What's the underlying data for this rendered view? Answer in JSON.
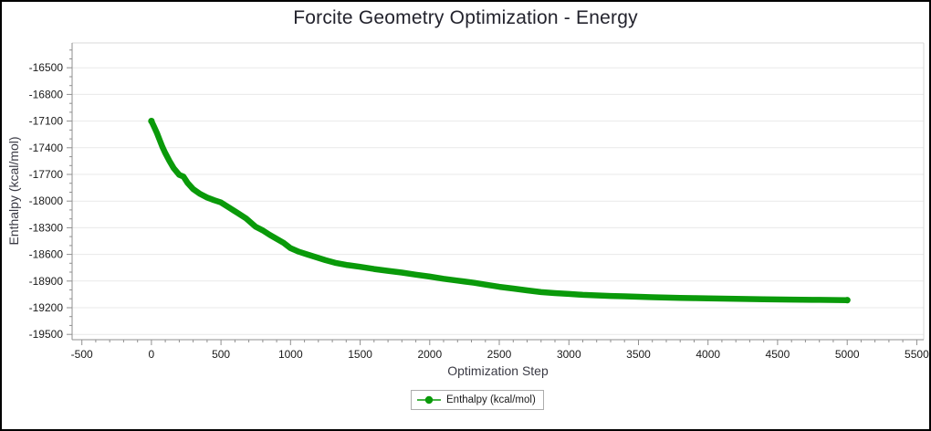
{
  "window": {
    "title": "Forcite Geometry Optimization - Energy"
  },
  "chart_data": {
    "type": "line",
    "title": "Forcite Geometry Optimization - Energy",
    "xlabel": "Optimization Step",
    "ylabel": "Enthalpy (kcal/mol)",
    "grid": "horizontal-major",
    "legend": {
      "position": "bottom-center",
      "entries": [
        {
          "label": "Enthalpy (kcal/mol)",
          "marker": "circle-on-line",
          "color": "#0a9a0a"
        }
      ]
    },
    "xlim": [
      -570,
      5550
    ],
    "ylim": [
      -19560,
      -16220
    ],
    "x_major_ticks": [
      -500,
      0,
      500,
      1000,
      1500,
      2000,
      2500,
      3000,
      3500,
      4000,
      4500,
      5000,
      5500
    ],
    "x_minor_step": 100,
    "y_major_ticks": [
      -16500,
      -16800,
      -17100,
      -17400,
      -17700,
      -18000,
      -18300,
      -18600,
      -18900,
      -19200,
      -19500
    ],
    "y_minor_step": 100,
    "series": [
      {
        "name": "Enthalpy (kcal/mol)",
        "color": "#0a9a0a",
        "line_width": 6.5,
        "x": [
          0,
          20,
          40,
          60,
          80,
          100,
          130,
          160,
          200,
          230,
          260,
          300,
          350,
          400,
          450,
          500,
          560,
          620,
          680,
          750,
          800,
          850,
          900,
          950,
          1000,
          1060,
          1120,
          1180,
          1250,
          1320,
          1400,
          1500,
          1600,
          1700,
          1800,
          1900,
          2000,
          2100,
          2200,
          2320,
          2400,
          2500,
          2600,
          2700,
          2800,
          2900,
          3000,
          3100,
          3200,
          3300,
          3400,
          3500,
          3600,
          3700,
          3800,
          3900,
          4000,
          4200,
          4400,
          4600,
          4800,
          5000
        ],
        "y": [
          -17100,
          -17165,
          -17235,
          -17315,
          -17395,
          -17460,
          -17550,
          -17630,
          -17705,
          -17725,
          -17795,
          -17865,
          -17920,
          -17960,
          -17990,
          -18015,
          -18075,
          -18135,
          -18195,
          -18290,
          -18330,
          -18380,
          -18425,
          -18470,
          -18530,
          -18570,
          -18600,
          -18630,
          -18665,
          -18695,
          -18718,
          -18740,
          -18765,
          -18785,
          -18805,
          -18828,
          -18850,
          -18875,
          -18895,
          -18920,
          -18940,
          -18965,
          -18985,
          -19005,
          -19025,
          -19036,
          -19045,
          -19055,
          -19062,
          -19068,
          -19072,
          -19077,
          -19082,
          -19086,
          -19089,
          -19092,
          -19095,
          -19100,
          -19105,
          -19109,
          -19112,
          -19115
        ]
      }
    ],
    "colors": {
      "gridline": "#e9e9e9",
      "axis": "#8f8f8f",
      "frame": "#d9d9d9",
      "tick_label": "#1a1a1a",
      "title": "#23232d",
      "axis_label": "#3a3a44",
      "legend_border": "#adadad"
    }
  }
}
